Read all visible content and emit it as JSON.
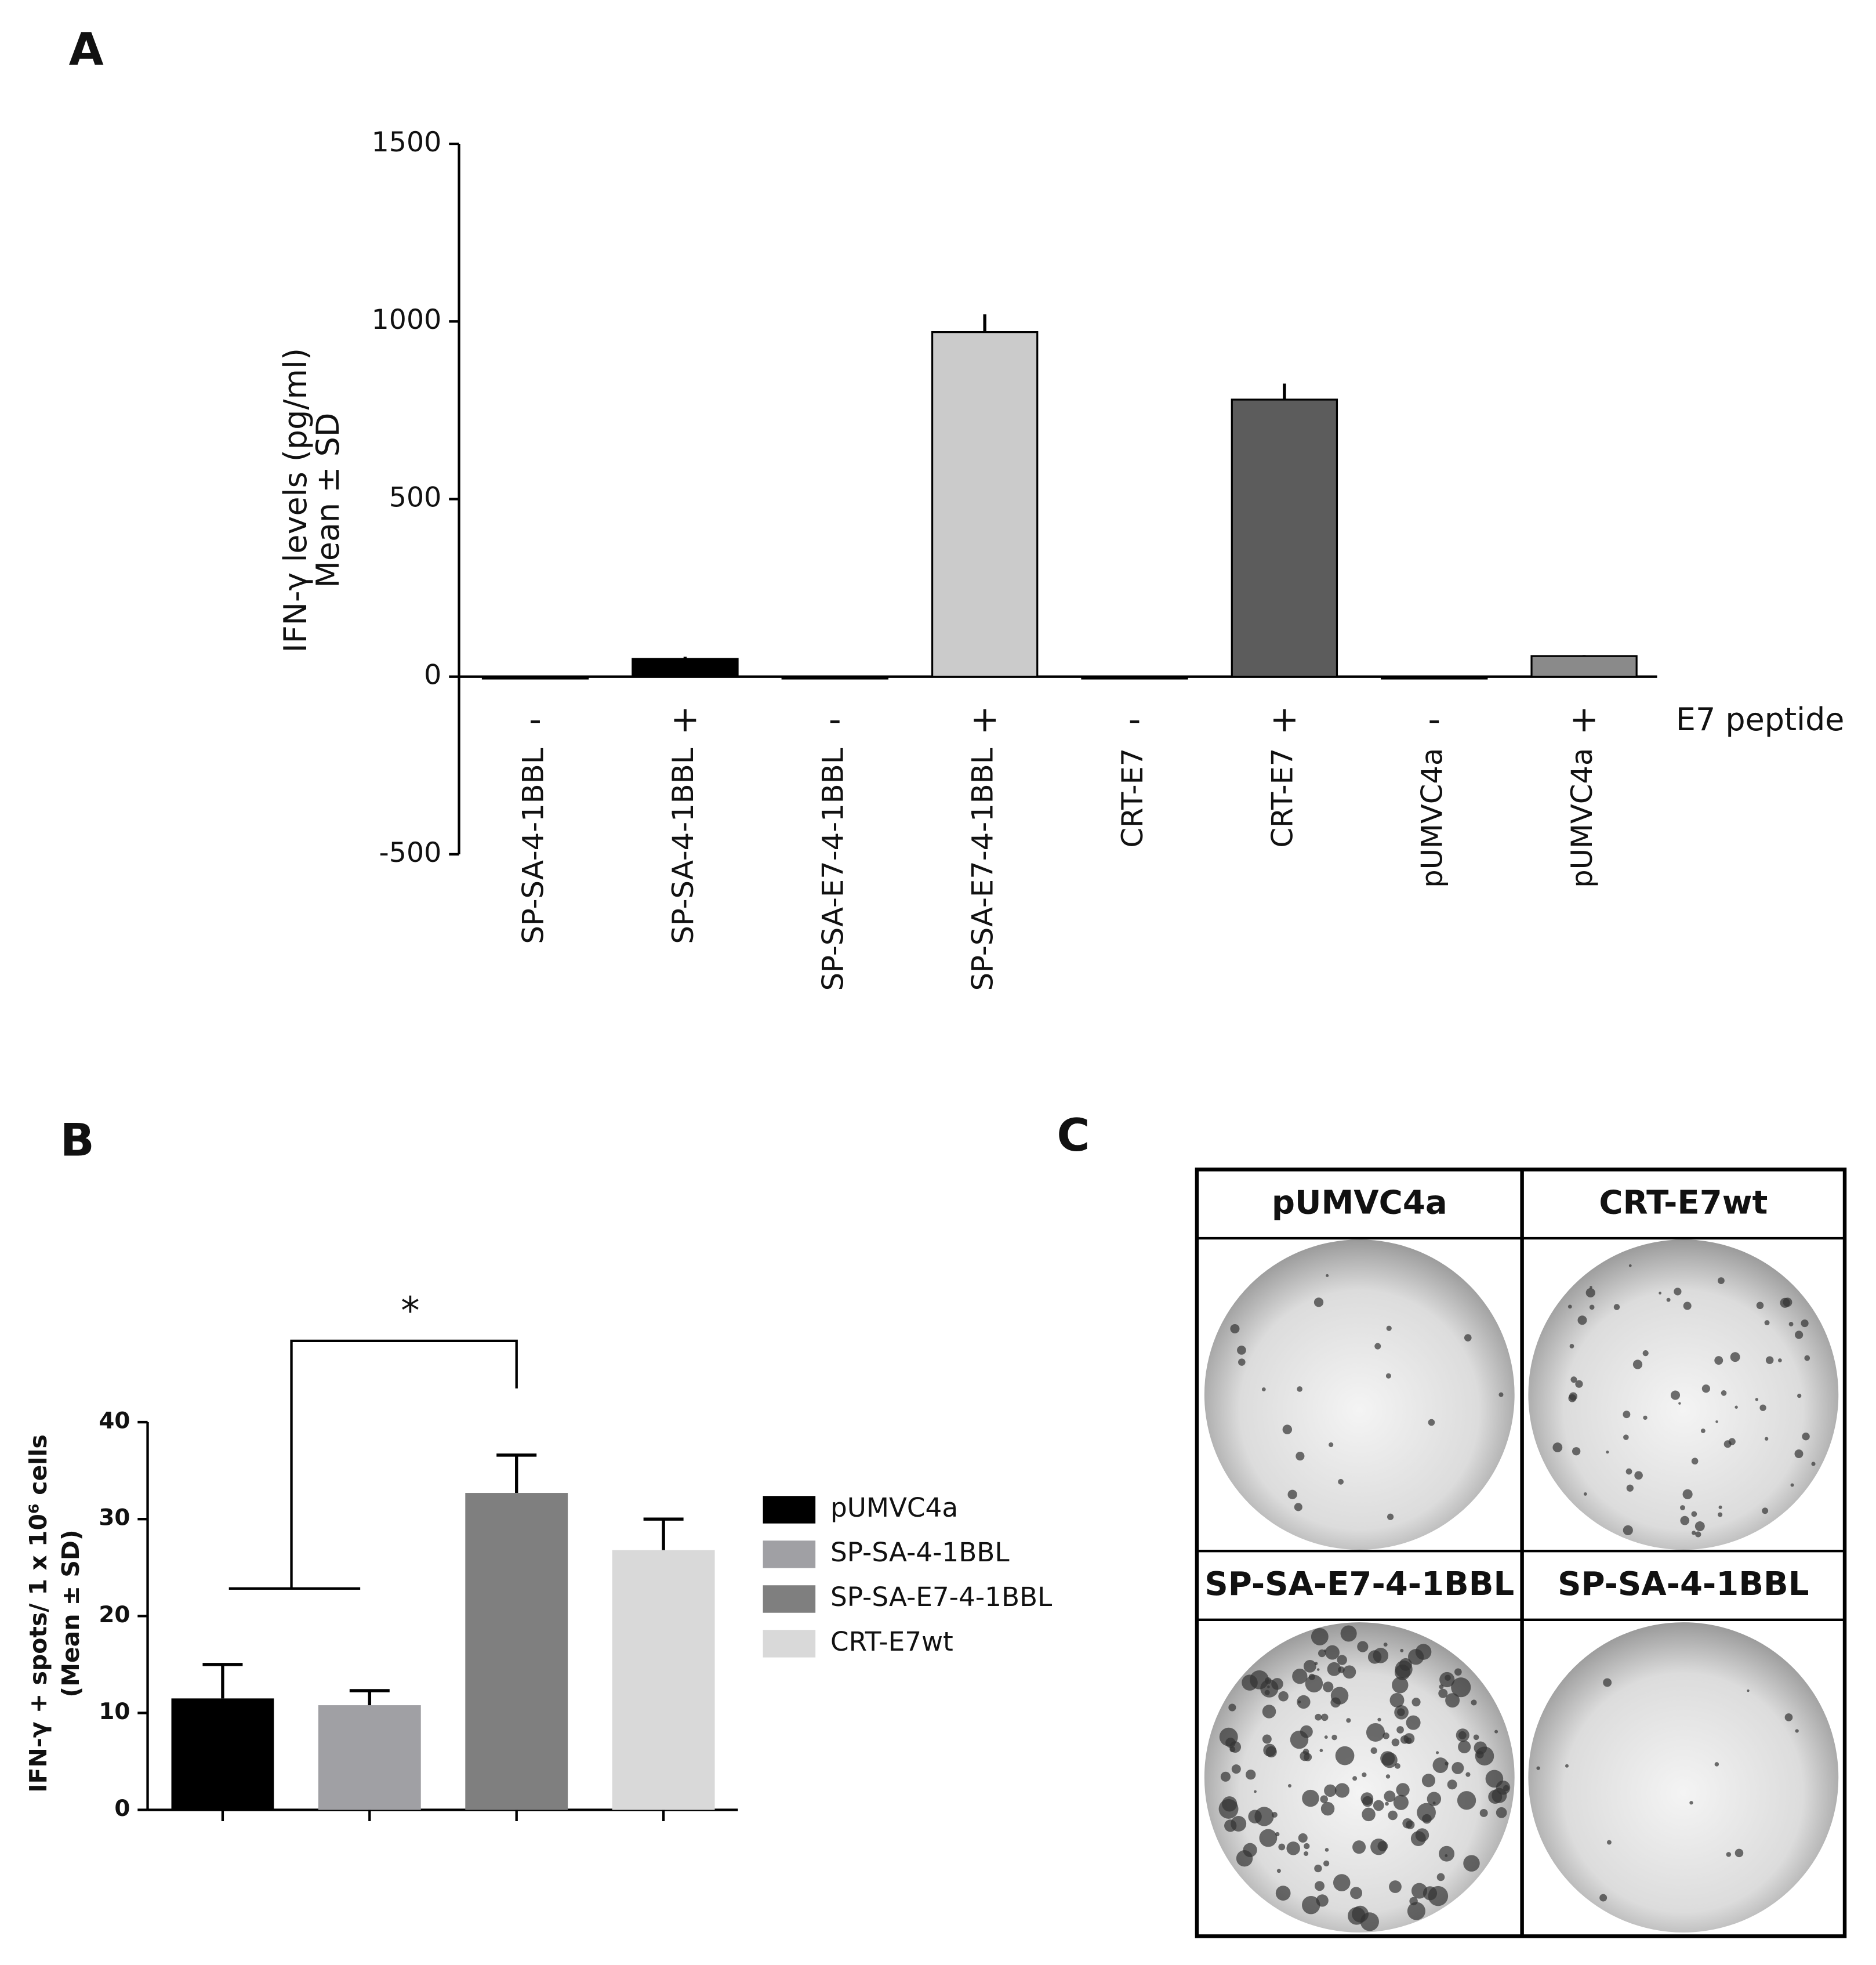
{
  "chart_data": [
    {
      "type": "bar",
      "panel": "A",
      "y_label": [
        "IFN-γ levels (pg/ml)",
        "Mean ± SD"
      ],
      "categories": [
        "SP-SA-4-1BBL",
        "SP-SA-4-1BBL",
        "SP-SA-E7-4-1BBL",
        "SP-SA-E7-4-1BBL",
        "CRT-E7",
        "CRT-E7",
        "pUMVC4a",
        "pUMVC4a"
      ],
      "peptide": [
        "-",
        "+",
        "-",
        "+",
        "-",
        "+",
        "-",
        "+"
      ],
      "peptide_label": "E7 peptide",
      "values": [
        -3,
        50,
        -2,
        970,
        -2,
        780,
        -2,
        58
      ],
      "errors": [
        2,
        6,
        1,
        50,
        1,
        45,
        1,
        3
      ],
      "colors": [
        "#111111",
        "#000000",
        "#222222",
        "#cbcbcb",
        "#222222",
        "#5c5c5c",
        "#222222",
        "#8a8a8a"
      ],
      "ylim": [
        -500,
        1500
      ],
      "yticks": [
        -500,
        0,
        500,
        1000,
        1500
      ]
    },
    {
      "type": "bar",
      "panel": "B",
      "y_label": [
        "IFN-γ + spots/ 1 x 10⁶ cells",
        "(Mean ± SD)"
      ],
      "series": [
        {
          "name": "pUMVC4a",
          "color": "#000000",
          "values": [
            11.5
          ],
          "errors": [
            3.5
          ]
        },
        {
          "name": "SP-SA-4-1BBL",
          "color": "#a0a0a4",
          "values": [
            10.8
          ],
          "errors": [
            1.5
          ]
        },
        {
          "name": "SP-SA-E7-4-1BBL",
          "color": "#7f7f7f",
          "values": [
            32.7
          ],
          "errors": [
            3.9
          ]
        },
        {
          "name": "CRT-E7wt",
          "color": "#d9d9d9",
          "values": [
            26.8
          ],
          "errors": [
            3.2
          ]
        }
      ],
      "significance": "*",
      "ylim": [
        0,
        40
      ],
      "yticks": [
        0,
        10,
        20,
        30,
        40
      ]
    }
  ],
  "panel_c": {
    "label": "C",
    "wells": [
      "pUMVC4a",
      "CRT-E7wt",
      "SP-SA-E7-4-1BBL",
      "SP-SA-4-1BBL"
    ]
  }
}
